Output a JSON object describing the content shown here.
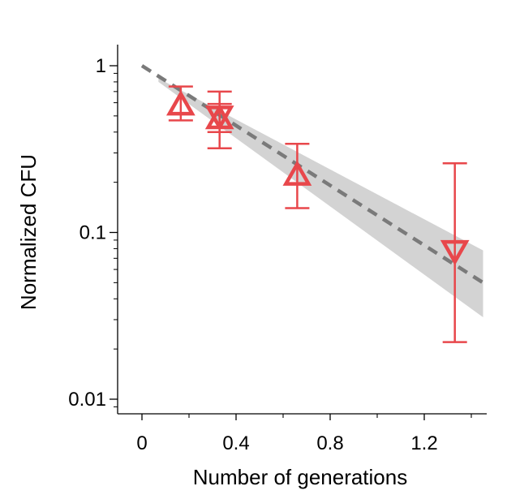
{
  "chart_data": {
    "type": "scatter",
    "title": "",
    "xlabel": "Number of generations",
    "ylabel": "Normalized CFU",
    "xlim": [
      -0.1,
      1.45
    ],
    "ylim": [
      0.008,
      1.4
    ],
    "yscale": "log",
    "x_ticks": [
      0,
      0.4,
      0.8,
      1.2
    ],
    "x_tick_labels": [
      "0",
      "0.4",
      "0.8",
      "1.2"
    ],
    "y_ticks": [
      1,
      0.1,
      0.01
    ],
    "y_tick_labels": [
      "1",
      "0.1",
      "0.01"
    ],
    "grid": false,
    "series": [
      {
        "marker": "triangle-up",
        "color": "#e8474b",
        "points": [
          {
            "x": 0.165,
            "y": 0.58,
            "err_low": 0.47,
            "err_high": 0.75
          },
          {
            "x": 0.33,
            "y": 0.48,
            "err_low": 0.4,
            "err_high": 0.59
          },
          {
            "x": 0.66,
            "y": 0.22,
            "err_low": 0.14,
            "err_high": 0.34
          }
        ]
      },
      {
        "marker": "triangle-down",
        "color": "#e8474b",
        "points": [
          {
            "x": 0.33,
            "y": 0.5,
            "err_low": 0.32,
            "err_high": 0.7
          },
          {
            "x": 1.33,
            "y": 0.078,
            "err_low": 0.022,
            "err_high": 0.26
          }
        ]
      }
    ],
    "fit": {
      "style": "dashed",
      "color": "#7a7a7a",
      "x": [
        0,
        1.45
      ],
      "y": [
        1.0,
        0.05
      ]
    },
    "confidence_band": {
      "color": "#d3d3d3",
      "x": [
        0.07,
        1.45
      ],
      "lower": [
        0.8,
        0.031
      ],
      "upper": [
        0.84,
        0.078
      ]
    }
  }
}
